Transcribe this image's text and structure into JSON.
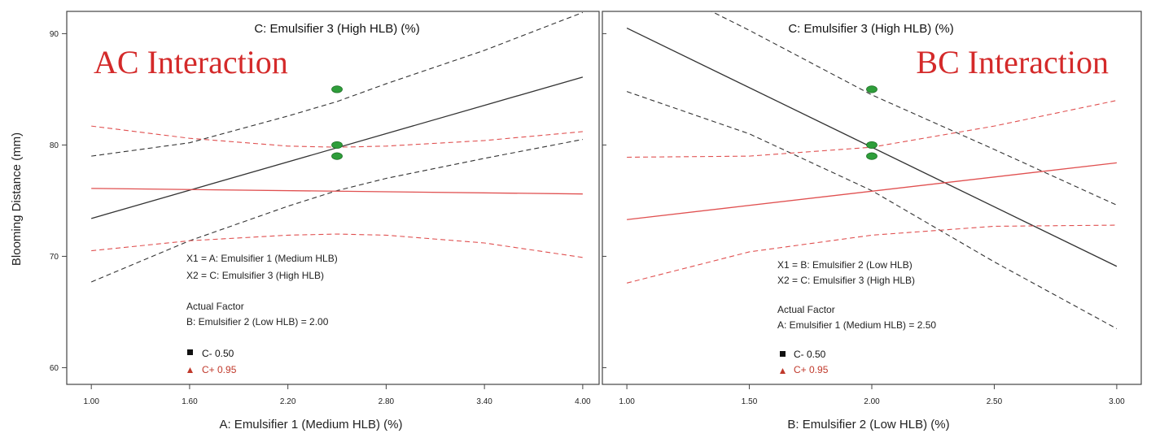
{
  "y_axis": {
    "label": "Blooming Distance (mm)",
    "ticks": [
      60,
      70,
      80,
      90
    ],
    "ylim": [
      58.5,
      92
    ]
  },
  "colors": {
    "low": "#333333",
    "high": "#e05050",
    "title": "#d42a2a",
    "point": "#2e9e3a",
    "frame": "#444444"
  },
  "chart_data": [
    {
      "type": "line",
      "title": "AC Interaction",
      "subtitle": "C: Emulsifier 3 (High HLB) (%)",
      "xlabel": "A: Emulsifier 1 (Medium HLB) (%)",
      "ylabel": "Blooming Distance (mm)",
      "xlim": [
        0.85,
        4.1
      ],
      "ylim": [
        58.5,
        92
      ],
      "x_ticks": [
        1.0,
        1.6,
        2.2,
        2.8,
        3.4,
        4.0
      ],
      "x_tick_labels": [
        "1.00",
        "1.60",
        "2.20",
        "2.80",
        "3.40",
        "4.00"
      ],
      "series": [
        {
          "name": "C- 0.50",
          "x": [
            1.0,
            4.0
          ],
          "y": [
            73.4,
            86.1
          ],
          "upper": {
            "x": [
              1.0,
              1.6,
              2.2,
              2.5,
              2.8,
              3.4,
              4.0
            ],
            "y": [
              79.0,
              80.2,
              82.6,
              83.9,
              85.5,
              88.5,
              91.9
            ]
          },
          "lower": {
            "x": [
              1.0,
              1.6,
              2.2,
              2.5,
              2.8,
              3.4,
              4.0
            ],
            "y": [
              67.7,
              71.4,
              74.5,
              75.9,
              77.0,
              78.8,
              80.5
            ]
          }
        },
        {
          "name": "C+ 0.95",
          "x": [
            1.0,
            4.0
          ],
          "y": [
            76.1,
            75.6
          ],
          "upper": {
            "x": [
              1.0,
              1.6,
              2.2,
              2.5,
              2.8,
              3.4,
              4.0
            ],
            "y": [
              81.7,
              80.6,
              79.9,
              79.8,
              79.9,
              80.4,
              81.2
            ]
          },
          "lower": {
            "x": [
              1.0,
              1.6,
              2.2,
              2.5,
              2.8,
              3.4,
              4.0
            ],
            "y": [
              70.5,
              71.4,
              71.9,
              72.0,
              71.9,
              71.2,
              69.9
            ]
          }
        }
      ],
      "points": [
        {
          "x": 2.5,
          "y": 85.0
        },
        {
          "x": 2.5,
          "y": 80.0
        },
        {
          "x": 2.5,
          "y": 79.0
        }
      ],
      "annotations": {
        "factor_x1": "X1 = A: Emulsifier 1 (Medium HLB)",
        "factor_x2": "X2 = C: Emulsifier 3 (High HLB)",
        "actual_factor_heading": "Actual Factor",
        "actual_factor": "B: Emulsifier 2 (Low HLB) = 2.00"
      }
    },
    {
      "type": "line",
      "title": "BC Interaction",
      "subtitle": "C: Emulsifier 3 (High HLB) (%)",
      "xlabel": "B: Emulsifier 2 (Low HLB) (%)",
      "ylabel": "Blooming Distance (mm)",
      "xlim": [
        0.9,
        3.1
      ],
      "ylim": [
        58.5,
        92
      ],
      "x_ticks": [
        1.0,
        1.5,
        2.0,
        2.5,
        3.0
      ],
      "x_tick_labels": [
        "1.00",
        "1.50",
        "2.00",
        "2.50",
        "3.00"
      ],
      "series": [
        {
          "name": "C- 0.50",
          "x": [
            1.0,
            3.0
          ],
          "y": [
            90.5,
            69.1
          ],
          "upper": {
            "x": [
              1.3,
              1.5,
              2.0,
              2.5,
              3.0
            ],
            "y": [
              92.5,
              90.3,
              84.5,
              79.6,
              74.6
            ]
          },
          "lower": {
            "x": [
              1.0,
              1.5,
              2.0,
              2.5,
              3.0
            ],
            "y": [
              84.8,
              81.0,
              75.9,
              69.5,
              63.5
            ]
          }
        },
        {
          "name": "C+ 0.95",
          "x": [
            1.0,
            3.0
          ],
          "y": [
            73.3,
            78.4
          ],
          "upper": {
            "x": [
              1.0,
              1.5,
              2.0,
              2.5,
              3.0
            ],
            "y": [
              78.9,
              79.0,
              79.8,
              81.7,
              84.0
            ]
          },
          "lower": {
            "x": [
              1.0,
              1.5,
              2.0,
              2.5,
              3.0
            ],
            "y": [
              67.6,
              70.4,
              71.9,
              72.7,
              72.8
            ]
          }
        }
      ],
      "points": [
        {
          "x": 2.0,
          "y": 85.0
        },
        {
          "x": 2.0,
          "y": 80.0
        },
        {
          "x": 2.0,
          "y": 79.0
        }
      ],
      "annotations": {
        "factor_x1": "X1 = B: Emulsifier 2 (Low HLB)",
        "factor_x2": "X2 = C: Emulsifier 3 (High HLB)",
        "actual_factor_heading": "Actual Factor",
        "actual_factor": "A: Emulsifier 1 (Medium HLB) = 2.50"
      }
    }
  ]
}
